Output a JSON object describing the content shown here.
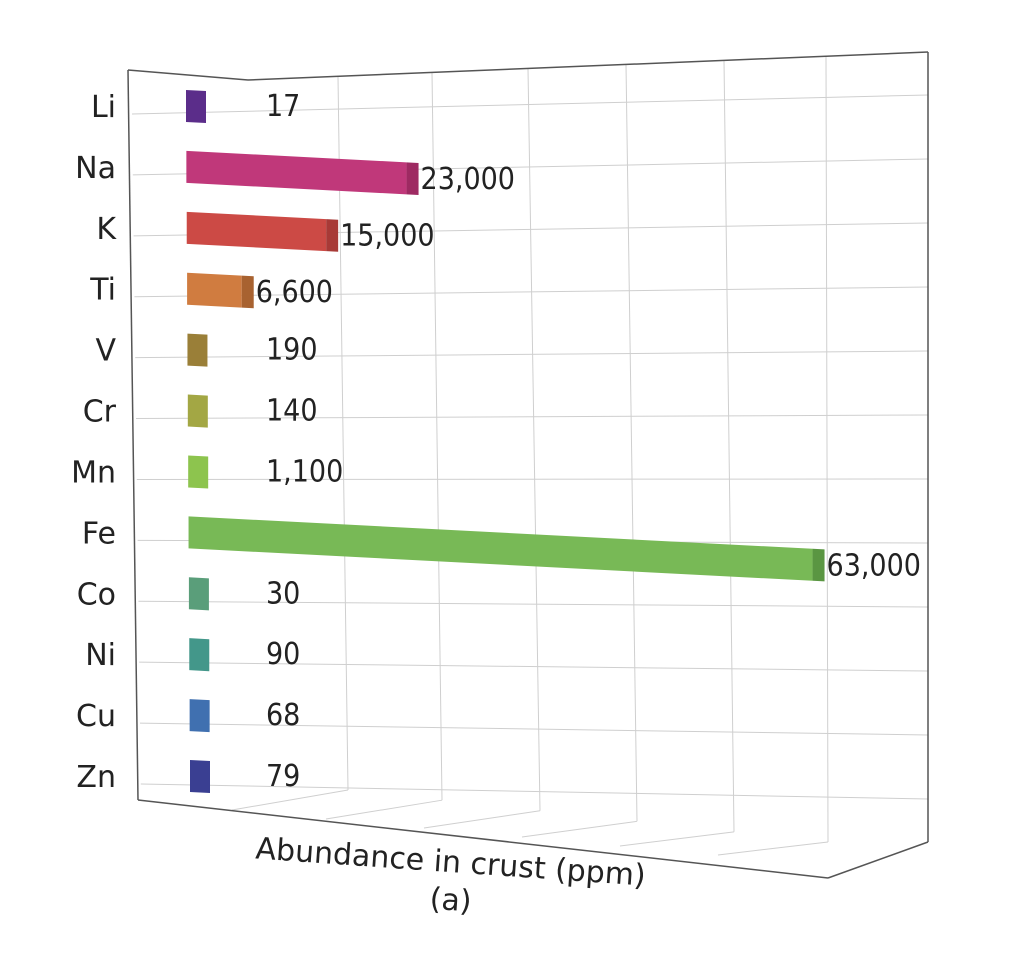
{
  "chart_data": {
    "type": "bar",
    "orientation": "horizontal",
    "title": "",
    "xlabel": "Abundance in crust (ppm)",
    "subtitle": "(a)",
    "ylabel": "",
    "categories": [
      "Li",
      "Na",
      "K",
      "Ti",
      "V",
      "Cr",
      "Mn",
      "Fe",
      "Co",
      "Ni",
      "Cu",
      "Zn"
    ],
    "values": [
      17,
      23000,
      15000,
      6600,
      190,
      140,
      1100,
      63000,
      30,
      90,
      68,
      79
    ],
    "value_labels": [
      "17",
      "23,000",
      "15,000",
      "6,600",
      "190",
      "140",
      "1,100",
      "63,000",
      "30",
      "90",
      "68",
      "79"
    ],
    "colors": [
      "#5b2d8a",
      "#c0387a",
      "#cc4a45",
      "#d07c40",
      "#9a7f38",
      "#a3a744",
      "#8dc44e",
      "#78b956",
      "#5a9e7a",
      "#43978a",
      "#4070b0",
      "#3a3f92"
    ],
    "cap_colors": [
      "#4a2272",
      "#9e2a62",
      "#a83a37",
      "#a86230",
      "#806828",
      "#878b36",
      "#6a9e38",
      "#5a9642",
      "#4a8466",
      "#357c72",
      "#325c92",
      "#2e3278"
    ],
    "xlim": [
      0,
      63000
    ],
    "grid": true,
    "legend": "none"
  }
}
